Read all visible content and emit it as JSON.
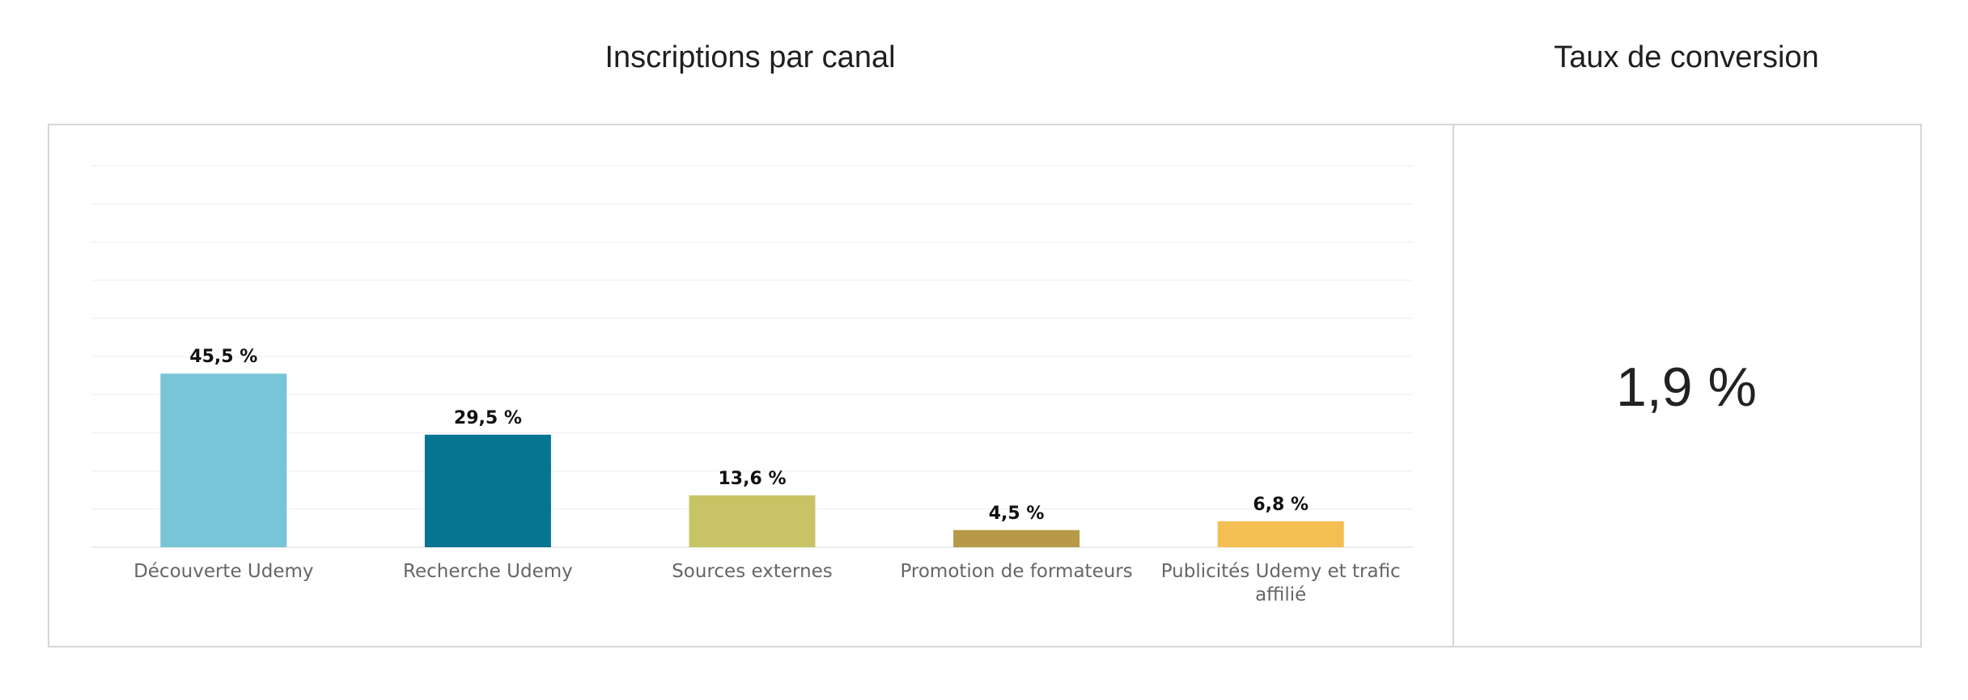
{
  "titles": {
    "chart": "Inscriptions par canal",
    "kpi": "Taux de conversion"
  },
  "kpi": {
    "value": "1,9 %"
  },
  "chart_data": {
    "type": "bar",
    "categories": [
      "Découverte Udemy",
      "Recherche Udemy",
      "Sources externes",
      "Promotion de formateurs",
      "Publicités Udemy et trafic affilié"
    ],
    "values": [
      45.5,
      29.5,
      13.6,
      4.5,
      6.8
    ],
    "data_labels": [
      "45,5 %",
      "29,5 %",
      "13,6 %",
      "4,5 %",
      "6,8 %"
    ],
    "colors": [
      "#79c5d8",
      "#057592",
      "#c8c466",
      "#b79947",
      "#f3bf52"
    ],
    "title": "Inscriptions par canal",
    "xlabel": "",
    "ylabel": "",
    "ylim": [
      0,
      100
    ],
    "grid": true
  }
}
